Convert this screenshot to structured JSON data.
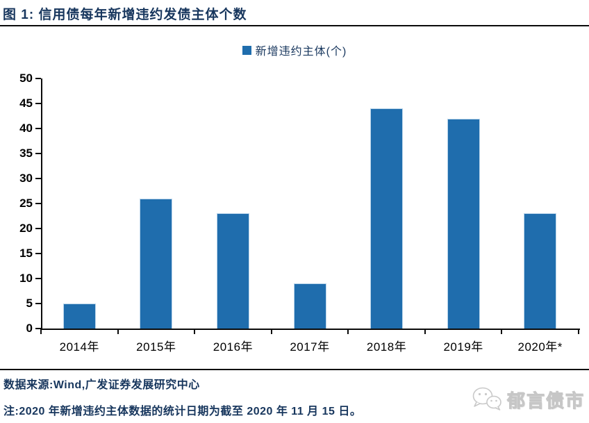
{
  "header": {
    "title": "图 1: 信用债每年新增违约发债主体个数"
  },
  "chart_data": {
    "type": "bar",
    "title": "信用债每年新增违约发债主体个数",
    "legend": "新增违约主体(个)",
    "legend_position": "top-center",
    "categories": [
      "2014年",
      "2015年",
      "2016年",
      "2017年",
      "2018年",
      "2019年",
      "2020年*"
    ],
    "values": [
      5,
      26,
      23,
      9,
      44,
      42,
      23
    ],
    "xlabel": "",
    "ylabel": "",
    "ylim": [
      0,
      50
    ],
    "yticks": [
      0,
      5,
      10,
      15,
      20,
      25,
      30,
      35,
      40,
      45,
      50
    ],
    "grid": false,
    "bar_color": "#1F6DAD"
  },
  "footer": {
    "source": "数据来源:Wind,广发证券发展研究中心",
    "note": "注:2020 年新增违约主体数据的统计日期为截至 2020 年 11 月 15 日。",
    "watermark_text": "郁言债市",
    "watermark_icon": "wechat-icon"
  },
  "colors": {
    "accent": "#1F6DAD",
    "heading_text": "#17365D",
    "axis_text": "#000000",
    "watermark": "#C6C6C6"
  }
}
